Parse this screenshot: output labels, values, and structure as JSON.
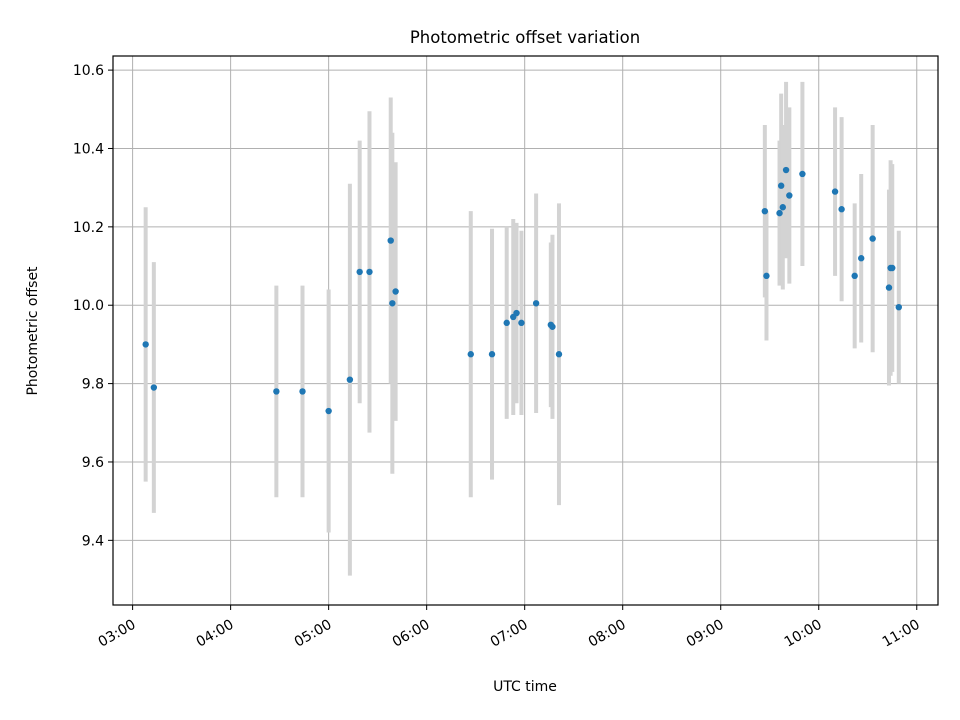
{
  "chart_data": {
    "type": "scatter",
    "title": "Photometric offset variation",
    "xlabel": "UTC time",
    "ylabel": "Photometric offset",
    "xlim": [
      "02:48",
      "11:13"
    ],
    "ylim": [
      9.235,
      10.636
    ],
    "x_ticks": [
      "03:00",
      "04:00",
      "05:00",
      "06:00",
      "07:00",
      "08:00",
      "09:00",
      "10:00",
      "11:00"
    ],
    "y_ticks": [
      9.4,
      9.6,
      9.8,
      10.0,
      10.2,
      10.4,
      10.6
    ],
    "y_tick_labels": [
      "9.4",
      "9.6",
      "9.8",
      "10.0",
      "10.2",
      "10.4",
      "10.6"
    ],
    "grid": true,
    "colors": {
      "points": "#1f77b4",
      "errorbars": "#d3d3d3",
      "grid": "#b0b0b0"
    },
    "points": [
      {
        "x": "03:08",
        "y": 9.9,
        "err": 0.35
      },
      {
        "x": "03:13",
        "y": 9.79,
        "err": 0.32
      },
      {
        "x": "04:28",
        "y": 9.78,
        "err": 0.27
      },
      {
        "x": "04:44",
        "y": 9.78,
        "err": 0.27
      },
      {
        "x": "05:00",
        "y": 9.73,
        "err": 0.31
      },
      {
        "x": "05:13",
        "y": 9.81,
        "err": 0.5
      },
      {
        "x": "05:19",
        "y": 10.085,
        "err": 0.335
      },
      {
        "x": "05:25",
        "y": 10.085,
        "err": 0.41
      },
      {
        "x": "05:38",
        "y": 10.165,
        "err": 0.365
      },
      {
        "x": "05:39",
        "y": 10.005,
        "err": 0.435
      },
      {
        "x": "05:41",
        "y": 10.035,
        "err": 0.33
      },
      {
        "x": "06:27",
        "y": 9.875,
        "err": 0.365
      },
      {
        "x": "06:40",
        "y": 9.875,
        "err": 0.32
      },
      {
        "x": "06:49",
        "y": 9.955,
        "err": 0.245
      },
      {
        "x": "06:53",
        "y": 9.97,
        "err": 0.25
      },
      {
        "x": "06:55",
        "y": 9.98,
        "err": 0.23
      },
      {
        "x": "06:58",
        "y": 9.955,
        "err": 0.235
      },
      {
        "x": "07:07",
        "y": 10.005,
        "err": 0.28
      },
      {
        "x": "07:16",
        "y": 9.95,
        "err": 0.21
      },
      {
        "x": "07:17",
        "y": 9.945,
        "err": 0.235
      },
      {
        "x": "07:21",
        "y": 9.875,
        "err": 0.385
      },
      {
        "x": "09:27",
        "y": 10.24,
        "err": 0.22
      },
      {
        "x": "09:28",
        "y": 10.075,
        "err": 0.165
      },
      {
        "x": "09:36",
        "y": 10.235,
        "err": 0.185
      },
      {
        "x": "09:37",
        "y": 10.305,
        "err": 0.235
      },
      {
        "x": "09:38",
        "y": 10.25,
        "err": 0.21
      },
      {
        "x": "09:40",
        "y": 10.345,
        "err": 0.225
      },
      {
        "x": "09:42",
        "y": 10.28,
        "err": 0.225
      },
      {
        "x": "09:50",
        "y": 10.335,
        "err": 0.235
      },
      {
        "x": "10:10",
        "y": 10.29,
        "err": 0.215
      },
      {
        "x": "10:14",
        "y": 10.245,
        "err": 0.235
      },
      {
        "x": "10:22",
        "y": 10.075,
        "err": 0.185
      },
      {
        "x": "10:26",
        "y": 10.12,
        "err": 0.215
      },
      {
        "x": "10:33",
        "y": 10.17,
        "err": 0.29
      },
      {
        "x": "10:43",
        "y": 10.045,
        "err": 0.25
      },
      {
        "x": "10:44",
        "y": 10.095,
        "err": 0.275
      },
      {
        "x": "10:45",
        "y": 10.095,
        "err": 0.265
      },
      {
        "x": "10:49",
        "y": 9.995,
        "err": 0.195
      }
    ]
  }
}
